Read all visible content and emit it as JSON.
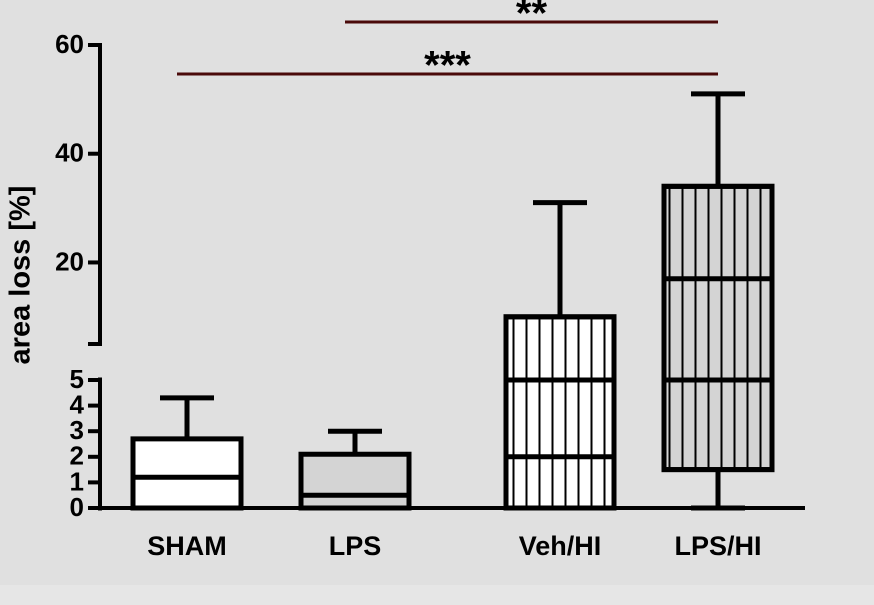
{
  "chart_data": {
    "type": "box",
    "y_label": "area loss [%]",
    "categories": [
      "SHAM",
      "LPS",
      "Veh/HI",
      "LPS/HI"
    ],
    "colors": [
      "#ffffff",
      "#d4d4d4",
      "#ffffff",
      "#d4d4d4"
    ],
    "hatched": [
      false,
      false,
      true,
      true
    ],
    "boxes": [
      {
        "min": 0,
        "q1": 0,
        "median": 1.2,
        "q3": 2.7,
        "max": 4.3
      },
      {
        "min": 0,
        "q1": 0,
        "median": 0.5,
        "q3": 2.1,
        "max": 3.0
      },
      {
        "min": 0,
        "q1": 0,
        "median": 2.0,
        "q3": 10,
        "max": 31
      },
      {
        "min": 0,
        "q1": 1.5,
        "median": 17,
        "q3": 34,
        "max": 51
      }
    ],
    "lower_ylim": [
      0,
      5
    ],
    "lower_yticks": [
      0,
      1,
      2,
      3,
      4,
      5
    ],
    "upper_ylim": [
      5,
      60
    ],
    "upper_yticks": [
      20,
      40,
      60
    ],
    "annotations": [
      {
        "text": "**",
        "from": 1,
        "to": 3,
        "color": "#4a0a0a"
      },
      {
        "text": "***",
        "from": 0,
        "to": 3,
        "color": "#4a0a0a"
      }
    ]
  }
}
